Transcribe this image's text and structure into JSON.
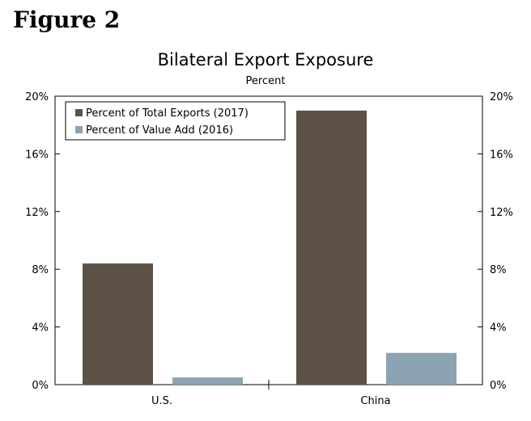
{
  "figure_label": "Figure 2",
  "chart_data": {
    "type": "bar",
    "title": "Bilateral Export Exposure",
    "subtitle": "Percent",
    "categories": [
      "U.S.",
      "China"
    ],
    "series": [
      {
        "name": "Percent of Total Exports (2017)",
        "color": "#5e5246",
        "values": [
          8.4,
          19.0
        ]
      },
      {
        "name": "Percent of Value Add (2016)",
        "color": "#8ca3b1",
        "values": [
          0.5,
          2.2
        ]
      }
    ],
    "ylim": [
      0,
      20
    ],
    "yticks": [
      0,
      4,
      8,
      12,
      16,
      20
    ],
    "ytick_labels": [
      "0%",
      "4%",
      "8%",
      "12%",
      "16%",
      "20%"
    ],
    "dual_y_axis": true,
    "grid": false,
    "legend_position": "top-left"
  }
}
